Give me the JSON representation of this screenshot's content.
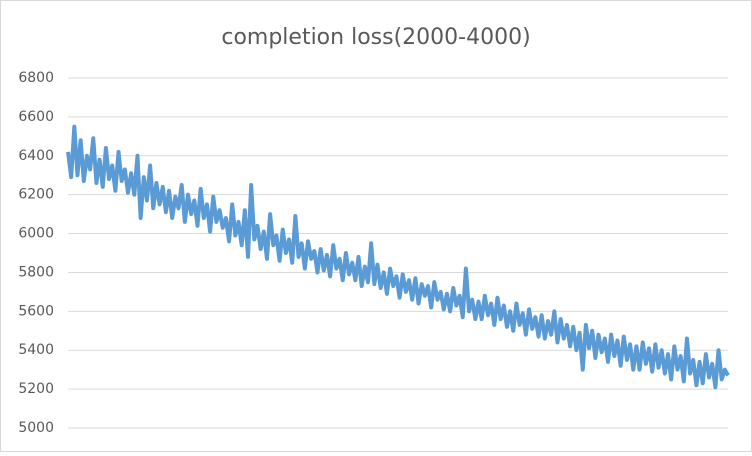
{
  "chart_data": {
    "type": "line",
    "title": "completion loss(2000-4000)",
    "color": "#5b9bd5",
    "grid": true,
    "ylim": [
      5000,
      6800
    ],
    "yticks": [
      5000,
      5200,
      5400,
      5600,
      5800,
      6000,
      6200,
      6400,
      6600,
      6800
    ],
    "values": [
      6420,
      6290,
      6550,
      6300,
      6480,
      6270,
      6400,
      6330,
      6490,
      6260,
      6380,
      6240,
      6440,
      6280,
      6350,
      6220,
      6420,
      6270,
      6330,
      6210,
      6310,
      6200,
      6400,
      6080,
      6290,
      6170,
      6350,
      6130,
      6260,
      6150,
      6240,
      6110,
      6220,
      6080,
      6190,
      6130,
      6250,
      6060,
      6200,
      6100,
      6170,
      6040,
      6230,
      6080,
      6150,
      6010,
      6190,
      6060,
      6120,
      6030,
      6080,
      5960,
      6150,
      5990,
      6060,
      5940,
      6120,
      5880,
      6250,
      5970,
      6040,
      5920,
      6010,
      5870,
      6100,
      5940,
      5990,
      5860,
      6020,
      5900,
      5970,
      5850,
      6090,
      5880,
      5950,
      5820,
      5960,
      5870,
      5910,
      5800,
      5920,
      5810,
      5890,
      5780,
      5940,
      5820,
      5870,
      5760,
      5900,
      5790,
      5850,
      5760,
      5880,
      5730,
      5830,
      5750,
      5950,
      5740,
      5840,
      5720,
      5800,
      5690,
      5820,
      5730,
      5780,
      5670,
      5790,
      5700,
      5760,
      5660,
      5770,
      5640,
      5740,
      5680,
      5730,
      5620,
      5750,
      5660,
      5700,
      5610,
      5690,
      5600,
      5720,
      5630,
      5680,
      5570,
      5820,
      5600,
      5660,
      5560,
      5650,
      5560,
      5680,
      5580,
      5640,
      5530,
      5670,
      5560,
      5630,
      5520,
      5600,
      5500,
      5640,
      5530,
      5590,
      5480,
      5610,
      5510,
      5570,
      5470,
      5580,
      5460,
      5550,
      5480,
      5600,
      5440,
      5560,
      5460,
      5530,
      5420,
      5520,
      5400,
      5490,
      5300,
      5530,
      5410,
      5500,
      5360,
      5480,
      5390,
      5460,
      5340,
      5480,
      5370,
      5450,
      5320,
      5470,
      5350,
      5430,
      5300,
      5420,
      5300,
      5440,
      5330,
      5410,
      5290,
      5430,
      5310,
      5400,
      5280,
      5380,
      5250,
      5420,
      5300,
      5370,
      5240,
      5460,
      5280,
      5350,
      5220,
      5340,
      5230,
      5380,
      5260,
      5330,
      5210,
      5400,
      5250,
      5300,
      5270
    ]
  }
}
